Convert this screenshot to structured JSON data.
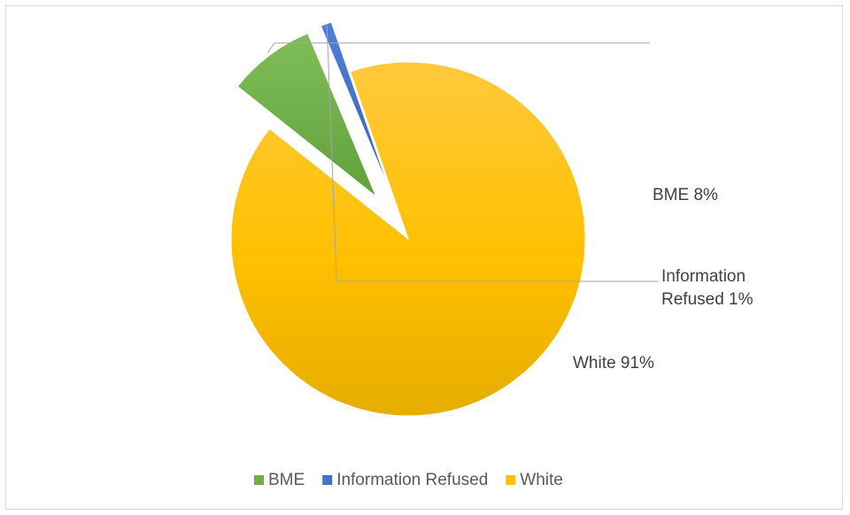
{
  "chart_data": {
    "type": "pie",
    "title": "",
    "categories": [
      "BME",
      "Information Refused",
      "White"
    ],
    "values": [
      8,
      1,
      91
    ],
    "unit": "%",
    "exploded": [
      "BME",
      "Information Refused"
    ],
    "colors": {
      "BME": "#70ad47",
      "Information Refused": "#4472c4",
      "White": "#ffc000"
    },
    "data_labels": {
      "BME": [
        "BME 8%"
      ],
      "Information Refused": [
        "Information",
        "Refused 1%"
      ],
      "White": [
        "White 91%"
      ]
    },
    "legend": {
      "position": "bottom",
      "entries": [
        "BME",
        "Information Refused",
        "White"
      ]
    }
  }
}
